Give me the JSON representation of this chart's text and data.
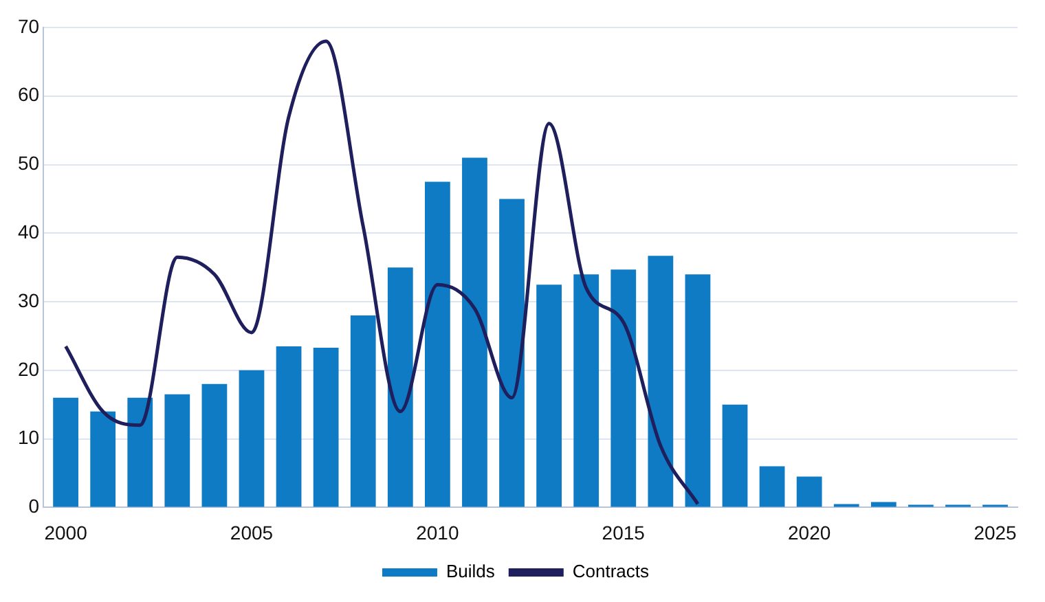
{
  "chart_data": {
    "type": "bar",
    "x": [
      2000,
      2001,
      2002,
      2003,
      2004,
      2005,
      2006,
      2007,
      2008,
      2009,
      2010,
      2011,
      2012,
      2013,
      2014,
      2015,
      2016,
      2017,
      2018,
      2019,
      2020,
      2021,
      2022,
      2023,
      2024,
      2025
    ],
    "series": [
      {
        "name": "Builds",
        "color": "#0f7bc4",
        "values": [
          16,
          14,
          16,
          16.5,
          18,
          20,
          23.5,
          23.3,
          28,
          35,
          47.5,
          51,
          45,
          32.5,
          34,
          34.7,
          36.7,
          34,
          15,
          6,
          4.5,
          0.5,
          0.8,
          0.4,
          0.4,
          0.4
        ]
      },
      {
        "name": "Contracts",
        "type": "line",
        "color": "#1e1f5c",
        "x": [
          2000,
          2001,
          2002,
          2003,
          2004,
          2005,
          2006,
          2007,
          2008,
          2009,
          2010,
          2011,
          2012,
          2013,
          2014,
          2015,
          2016,
          2017
        ],
        "values": [
          23.5,
          14,
          12,
          36.5,
          34,
          25.5,
          57,
          68,
          41,
          14,
          32.5,
          29,
          16,
          56,
          32,
          27,
          9,
          0.5
        ]
      }
    ],
    "xlim": [
      1999.4,
      2025.6
    ],
    "xticks": [
      2000,
      2005,
      2010,
      2015,
      2020,
      2025
    ],
    "ylim": [
      0,
      70
    ],
    "yticks": [
      0,
      10,
      20,
      30,
      40,
      50,
      60,
      70
    ],
    "grid": "y",
    "legend": "bottom",
    "marker": "none",
    "line_style": "solid"
  }
}
